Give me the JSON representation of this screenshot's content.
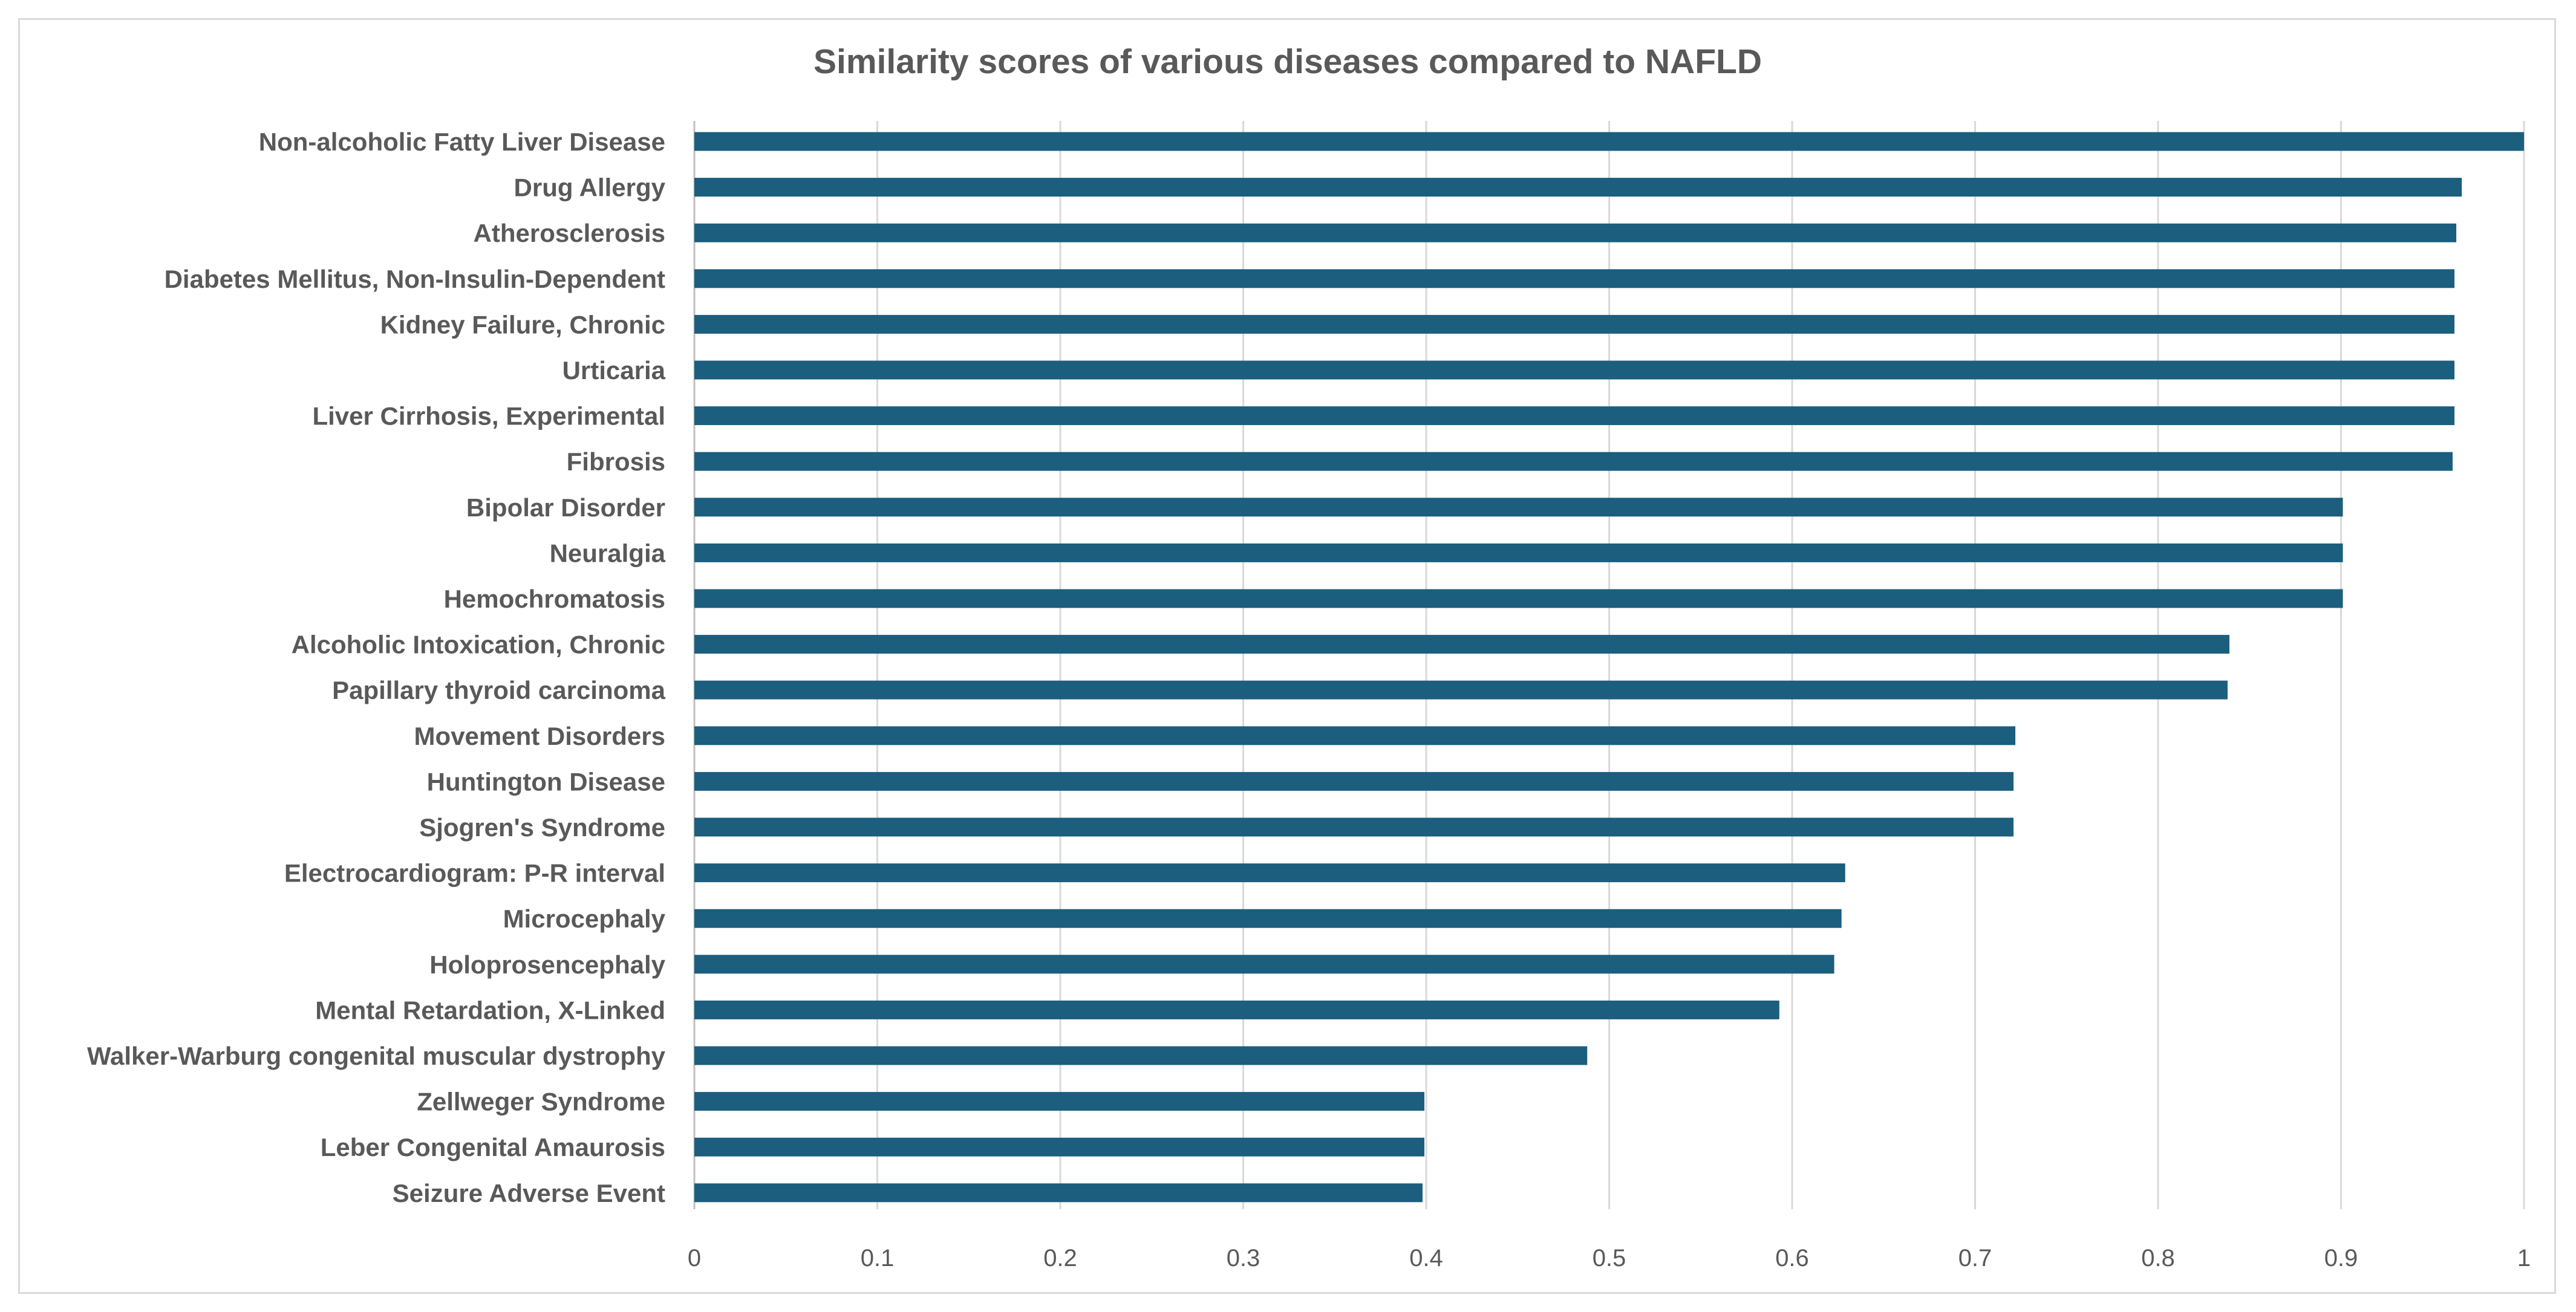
{
  "chart_data": {
    "type": "bar",
    "orientation": "horizontal",
    "title": "Similarity scores of various diseases compared to NAFLD",
    "xlabel": "",
    "ylabel": "",
    "xlim": [
      0,
      1
    ],
    "xticks": [
      "0",
      "0.1",
      "0.2",
      "0.3",
      "0.4",
      "0.5",
      "0.6",
      "0.7",
      "0.8",
      "0.9",
      "1"
    ],
    "grid": true,
    "legend": "none",
    "bar_color": "#1b5e7e",
    "categories": [
      "Non-alcoholic Fatty Liver Disease",
      "Drug Allergy",
      "Atherosclerosis",
      "Diabetes Mellitus, Non-Insulin-Dependent",
      "Kidney Failure, Chronic",
      "Urticaria",
      "Liver Cirrhosis, Experimental",
      "Fibrosis",
      "Bipolar Disorder",
      "Neuralgia",
      "Hemochromatosis",
      "Alcoholic Intoxication, Chronic",
      "Papillary thyroid carcinoma",
      "Movement Disorders",
      "Huntington Disease",
      "Sjogren's Syndrome",
      "Electrocardiogram: P-R interval",
      "Microcephaly",
      "Holoprosencephaly",
      "Mental Retardation, X-Linked",
      "Walker-Warburg congenital muscular dystrophy",
      "Zellweger Syndrome",
      "Leber Congenital Amaurosis",
      "Seizure Adverse Event"
    ],
    "values": [
      1.0,
      0.966,
      0.963,
      0.962,
      0.962,
      0.962,
      0.962,
      0.961,
      0.901,
      0.901,
      0.901,
      0.839,
      0.838,
      0.722,
      0.721,
      0.721,
      0.629,
      0.627,
      0.623,
      0.593,
      0.488,
      0.399,
      0.399,
      0.398
    ]
  }
}
